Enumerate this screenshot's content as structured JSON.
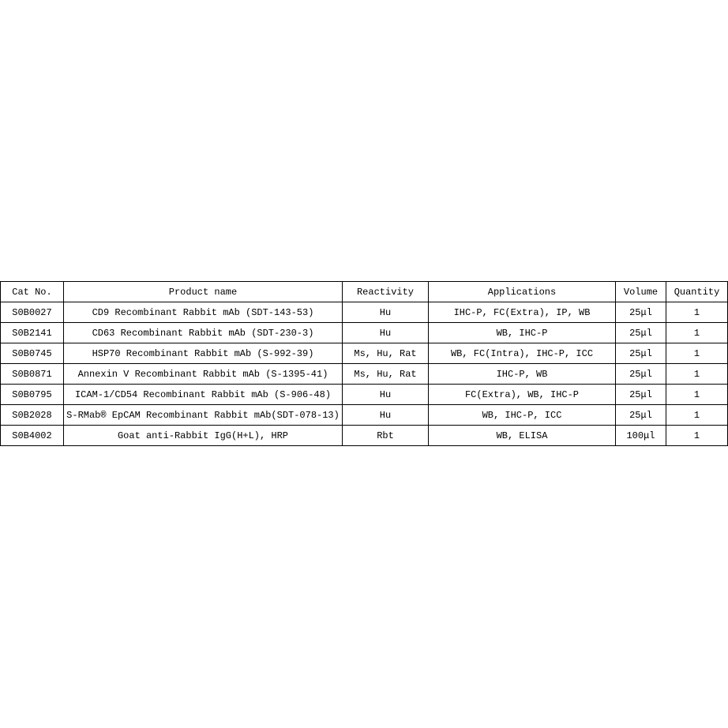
{
  "table": {
    "headers": [
      "Cat No.",
      "Product name",
      "Reactivity",
      "Applications",
      "Volume",
      "Quantity"
    ],
    "rows": [
      [
        "S0B0027",
        "CD9 Recombinant Rabbit mAb (SDT-143-53)",
        "Hu",
        "IHC-P, FC(Extra), IP, WB",
        "25μl",
        "1"
      ],
      [
        "S0B2141",
        "CD63 Recombinant Rabbit mAb (SDT-230-3)",
        "Hu",
        "WB, IHC-P",
        "25μl",
        "1"
      ],
      [
        "S0B0745",
        "HSP70 Recombinant Rabbit mAb (S-992-39)",
        "Ms, Hu, Rat",
        "WB, FC(Intra), IHC-P, ICC",
        "25μl",
        "1"
      ],
      [
        "S0B0871",
        "Annexin V Recombinant Rabbit mAb (S-1395-41)",
        "Ms, Hu, Rat",
        "IHC-P, WB",
        "25μl",
        "1"
      ],
      [
        "S0B0795",
        "ICAM-1/CD54 Recombinant Rabbit mAb (S-906-48)",
        "Hu",
        "FC(Extra), WB, IHC-P",
        "25μl",
        "1"
      ],
      [
        "S0B2028",
        "S-RMab® EpCAM Recombinant Rabbit mAb(SDT-078-13)",
        "Hu",
        "WB, IHC-P, ICC",
        "25μl",
        "1"
      ],
      [
        "S0B4002",
        "Goat anti-Rabbit IgG(H+L), HRP",
        "Rbt",
        "WB, ELISA",
        "100μl",
        "1"
      ]
    ]
  }
}
